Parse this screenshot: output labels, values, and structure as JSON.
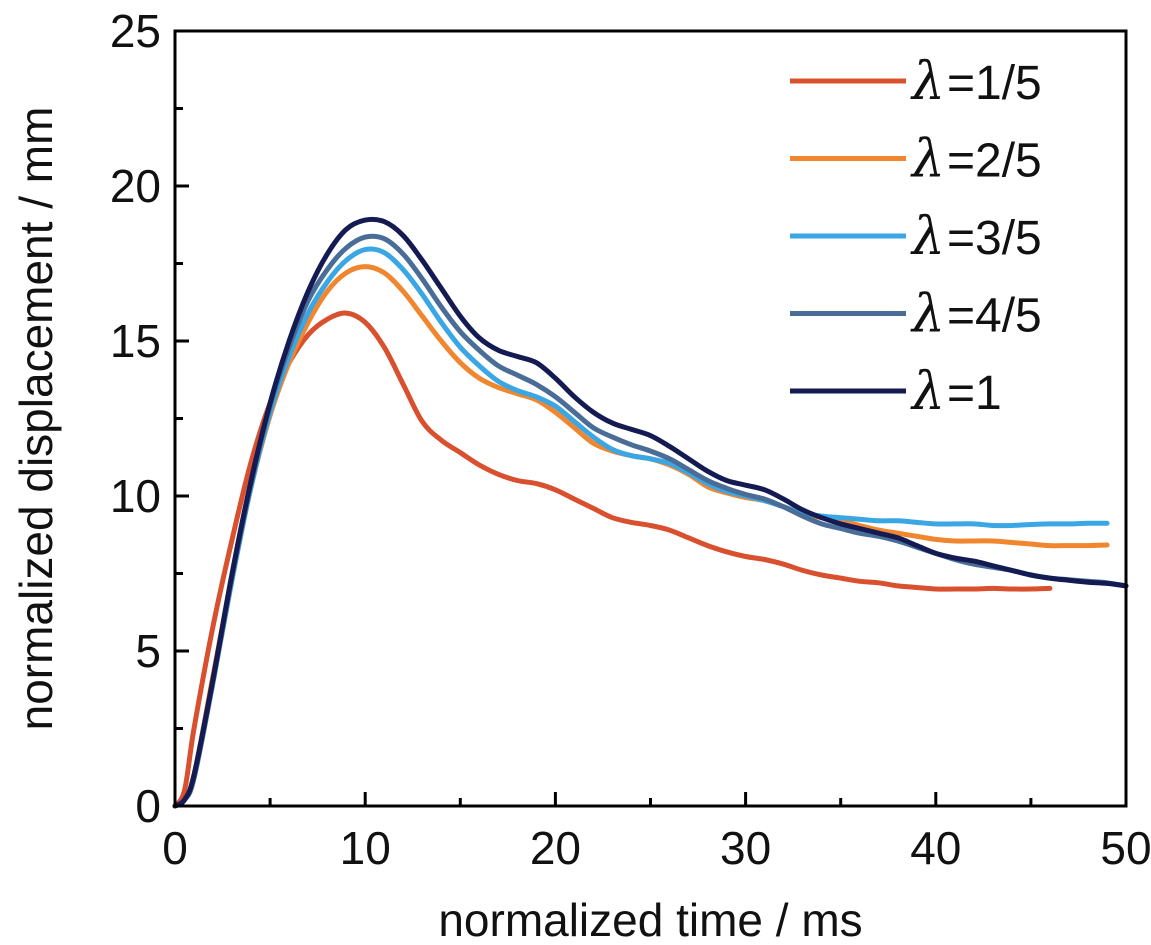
{
  "chart_data": {
    "type": "line",
    "title": "",
    "xlabel": "normalized time / ms",
    "ylabel": "normalized displacement / mm",
    "xlim": [
      0,
      50
    ],
    "ylim": [
      0,
      25
    ],
    "xticks": [
      "0",
      "10",
      "20",
      "30",
      "40",
      "50"
    ],
    "yticks": [
      "0",
      "5",
      "10",
      "15",
      "20",
      "25"
    ],
    "grid": false,
    "legend_position": "top-right",
    "series": [
      {
        "name": "λ=1/5",
        "legend_symbol": "λ",
        "legend_value": "=1/5",
        "color": "#d9502f",
        "x": [
          0,
          0.5,
          1,
          2,
          3,
          4,
          5,
          6,
          7,
          8,
          9,
          10,
          11,
          12,
          13,
          14,
          15,
          16,
          17,
          18,
          19,
          20,
          21,
          22,
          23,
          24,
          25,
          26,
          27,
          28,
          29,
          30,
          31,
          32,
          33,
          34,
          35,
          36,
          37,
          38,
          39,
          40,
          41,
          42,
          43,
          44,
          45,
          46
        ],
        "y": [
          0,
          0.5,
          2.5,
          5.8,
          8.6,
          11.1,
          13.0,
          14.3,
          15.2,
          15.7,
          15.9,
          15.6,
          14.8,
          13.6,
          12.4,
          11.8,
          11.4,
          11.0,
          10.7,
          10.5,
          10.4,
          10.2,
          9.9,
          9.6,
          9.3,
          9.15,
          9.05,
          8.9,
          8.65,
          8.4,
          8.2,
          8.05,
          7.95,
          7.8,
          7.6,
          7.45,
          7.35,
          7.25,
          7.2,
          7.1,
          7.05,
          7.0,
          7.0,
          7.0,
          7.02,
          7.0,
          7.0,
          7.02
        ]
      },
      {
        "name": "λ=2/5",
        "legend_symbol": "λ",
        "legend_value": "=2/5",
        "color": "#f0862e",
        "x": [
          0,
          0.5,
          1,
          2,
          3,
          4,
          5,
          6,
          7,
          8,
          9,
          10,
          11,
          12,
          13,
          14,
          15,
          16,
          17,
          18,
          19,
          20,
          21,
          22,
          23,
          24,
          25,
          26,
          27,
          28,
          29,
          30,
          31,
          32,
          33,
          34,
          35,
          36,
          37,
          38,
          39,
          40,
          41,
          42,
          43,
          44,
          45,
          46,
          47,
          48,
          49
        ],
        "y": [
          0,
          0.2,
          1.0,
          4.2,
          7.4,
          10.3,
          12.6,
          14.3,
          15.6,
          16.6,
          17.2,
          17.4,
          17.2,
          16.6,
          15.8,
          15.0,
          14.3,
          13.8,
          13.5,
          13.3,
          13.1,
          12.7,
          12.2,
          11.7,
          11.45,
          11.3,
          11.2,
          11.0,
          10.7,
          10.3,
          10.1,
          9.95,
          9.85,
          9.65,
          9.45,
          9.3,
          9.2,
          9.05,
          8.9,
          8.8,
          8.7,
          8.6,
          8.55,
          8.55,
          8.55,
          8.5,
          8.45,
          8.4,
          8.4,
          8.4,
          8.42
        ]
      },
      {
        "name": "λ=3/5",
        "legend_symbol": "λ",
        "legend_value": "=3/5",
        "color": "#3aa7e4",
        "x": [
          0,
          0.5,
          1,
          2,
          3,
          4,
          5,
          6,
          7,
          8,
          9,
          10,
          11,
          12,
          13,
          14,
          15,
          16,
          17,
          18,
          19,
          20,
          21,
          22,
          23,
          24,
          25,
          26,
          27,
          28,
          29,
          30,
          31,
          32,
          33,
          34,
          35,
          36,
          37,
          38,
          39,
          40,
          41,
          42,
          43,
          44,
          45,
          46,
          47,
          48,
          49
        ],
        "y": [
          0,
          0.2,
          0.9,
          4.0,
          7.3,
          10.3,
          12.7,
          14.5,
          15.9,
          16.9,
          17.6,
          17.95,
          17.85,
          17.3,
          16.5,
          15.6,
          14.8,
          14.2,
          13.7,
          13.4,
          13.2,
          12.9,
          12.4,
          11.9,
          11.5,
          11.3,
          11.2,
          11.05,
          10.75,
          10.4,
          10.15,
          10.0,
          9.85,
          9.65,
          9.45,
          9.35,
          9.3,
          9.25,
          9.2,
          9.2,
          9.15,
          9.1,
          9.1,
          9.1,
          9.05,
          9.05,
          9.08,
          9.1,
          9.1,
          9.12,
          9.12
        ]
      },
      {
        "name": "λ=4/5",
        "legend_symbol": "λ",
        "legend_value": "=4/5",
        "color": "#4a6d98",
        "x": [
          0,
          0.5,
          1,
          2,
          3,
          4,
          5,
          6,
          7,
          8,
          9,
          10,
          11,
          12,
          13,
          14,
          15,
          16,
          17,
          18,
          19,
          20,
          21,
          22,
          23,
          24,
          25,
          26,
          27,
          28,
          29,
          30,
          31,
          32,
          33,
          34,
          35,
          36,
          37,
          38,
          39,
          40,
          41,
          42,
          43,
          44,
          45,
          46,
          47,
          48,
          49,
          50
        ],
        "y": [
          0,
          0.2,
          0.9,
          4.0,
          7.4,
          10.4,
          12.9,
          14.8,
          16.3,
          17.3,
          18.0,
          18.35,
          18.3,
          17.8,
          17.0,
          16.1,
          15.3,
          14.7,
          14.2,
          13.9,
          13.6,
          13.2,
          12.7,
          12.2,
          11.9,
          11.65,
          11.45,
          11.2,
          10.85,
          10.5,
          10.25,
          10.05,
          9.9,
          9.65,
          9.35,
          9.1,
          8.95,
          8.8,
          8.7,
          8.55,
          8.35,
          8.15,
          7.95,
          7.8,
          7.7,
          7.6,
          7.45,
          7.35,
          7.3,
          7.25,
          7.2,
          7.1
        ]
      },
      {
        "name": "λ=1",
        "legend_symbol": "λ",
        "legend_value": "=1",
        "color": "#141a52",
        "x": [
          0,
          0.5,
          1,
          2,
          3,
          4,
          5,
          6,
          7,
          8,
          9,
          10,
          11,
          12,
          13,
          14,
          15,
          16,
          17,
          18,
          19,
          20,
          21,
          22,
          23,
          24,
          25,
          26,
          27,
          28,
          29,
          30,
          31,
          32,
          33,
          34,
          35,
          36,
          37,
          38,
          39,
          40,
          41,
          42,
          43,
          44,
          45,
          46,
          47,
          48,
          49,
          50
        ],
        "y": [
          0,
          0.2,
          1.0,
          4.1,
          7.5,
          10.5,
          13.0,
          15.0,
          16.6,
          17.8,
          18.6,
          18.9,
          18.85,
          18.4,
          17.6,
          16.7,
          15.8,
          15.1,
          14.7,
          14.5,
          14.3,
          13.8,
          13.2,
          12.7,
          12.35,
          12.15,
          11.95,
          11.6,
          11.2,
          10.8,
          10.5,
          10.35,
          10.2,
          9.9,
          9.55,
          9.3,
          9.1,
          8.95,
          8.8,
          8.65,
          8.4,
          8.15,
          8.0,
          7.9,
          7.75,
          7.6,
          7.45,
          7.35,
          7.28,
          7.22,
          7.18,
          7.1
        ]
      }
    ]
  }
}
